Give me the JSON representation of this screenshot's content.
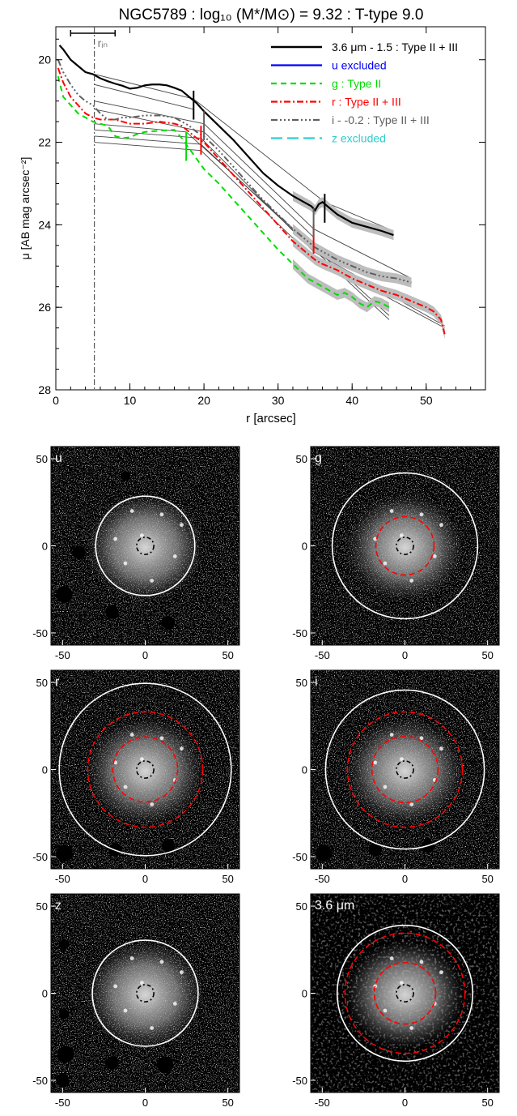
{
  "chart_data": [
    {
      "type": "line",
      "title": "NGC5789 : log₁₀ (M*/M⊙) = 9.32 : T-type 9.0",
      "xlabel": "r [arcsec]",
      "ylabel": "μ [AB mag arcsec⁻²]",
      "xlim": [
        0,
        58
      ],
      "ylim": [
        28,
        19.2
      ],
      "x_ticks": [
        0,
        10,
        20,
        30,
        40,
        50
      ],
      "y_ticks": [
        20,
        22,
        24,
        26,
        28
      ],
      "grid": false,
      "legend_position": "top-right",
      "r_in": 5.2,
      "r_in_label": "rᵢₙ",
      "resolution_bar": [
        2,
        8
      ],
      "series": [
        {
          "name": "3.6 μm - 1.5 : Type II + III",
          "color": "#000000",
          "dash": "",
          "width": 2.2,
          "x": [
            0.5,
            1,
            2,
            3,
            4,
            5,
            6,
            7,
            8,
            9,
            10,
            11,
            12,
            13,
            14,
            15,
            16,
            17,
            18,
            19,
            20,
            22,
            24,
            26,
            28,
            30,
            32,
            33,
            34,
            34.5,
            35,
            35.5,
            36,
            37,
            38,
            39,
            40,
            42,
            44,
            45.6
          ],
          "y": [
            19.65,
            19.75,
            20.0,
            20.15,
            20.3,
            20.35,
            20.45,
            20.52,
            20.58,
            20.63,
            20.7,
            20.68,
            20.62,
            20.6,
            20.6,
            20.62,
            20.68,
            20.75,
            20.9,
            21.05,
            21.25,
            21.6,
            21.95,
            22.35,
            22.75,
            23.05,
            23.3,
            23.4,
            23.5,
            23.55,
            23.65,
            23.5,
            23.45,
            23.6,
            23.75,
            23.85,
            23.95,
            24.05,
            24.15,
            24.25
          ]
        },
        {
          "name": "u excluded",
          "color": "#0000ff",
          "dash": "",
          "width": 2,
          "x": [],
          "y": []
        },
        {
          "name": "g : Type II",
          "color": "#00dd00",
          "dash": "7,5",
          "width": 2,
          "x": [
            0.3,
            1,
            2,
            3,
            4,
            5,
            6,
            7,
            8,
            9,
            10,
            11,
            12,
            14,
            16,
            17,
            18,
            19,
            20,
            22,
            24,
            26,
            28,
            30,
            32,
            34,
            35,
            36,
            37,
            38,
            39,
            40,
            41,
            42,
            43,
            44,
            45
          ],
          "y": [
            20.4,
            20.9,
            21.1,
            21.3,
            21.4,
            21.5,
            21.55,
            21.6,
            21.85,
            21.9,
            21.88,
            21.8,
            21.75,
            21.72,
            21.7,
            21.9,
            22.15,
            22.4,
            22.65,
            23.0,
            23.4,
            23.8,
            24.2,
            24.6,
            24.95,
            25.3,
            25.4,
            25.5,
            25.6,
            25.7,
            25.65,
            25.75,
            25.9,
            26.0,
            25.85,
            25.9,
            26.0
          ]
        },
        {
          "name": "r : Type II + III",
          "color": "#ff0000",
          "dash": "8,3,2,3",
          "width": 2,
          "x": [
            0.3,
            1,
            2,
            3,
            4,
            5,
            6,
            7,
            8,
            9,
            10,
            12,
            14,
            16,
            17,
            18,
            19,
            20,
            22,
            24,
            26,
            28,
            30,
            32,
            34,
            35,
            36,
            38,
            40,
            42,
            44,
            46,
            48,
            50,
            51,
            52,
            52.5
          ],
          "y": [
            20.2,
            20.55,
            20.9,
            21.1,
            21.3,
            21.4,
            21.45,
            21.45,
            21.45,
            21.5,
            21.55,
            21.55,
            21.5,
            21.55,
            21.6,
            21.75,
            21.9,
            22.0,
            22.4,
            22.8,
            23.2,
            23.6,
            24.0,
            24.4,
            24.7,
            24.85,
            24.95,
            25.1,
            25.3,
            25.45,
            25.6,
            25.7,
            25.85,
            26.0,
            26.1,
            26.3,
            26.65
          ]
        },
        {
          "name": "i - -0.2 : Type II + III",
          "color": "#606060",
          "dash": "8,3,2,3,2,3,2,3",
          "width": 2,
          "x": [
            0.3,
            1,
            2,
            3,
            4,
            5,
            6,
            7,
            8,
            9,
            10,
            12,
            14,
            16,
            17,
            18,
            19,
            20,
            22,
            24,
            26,
            28,
            30,
            32,
            34,
            35,
            36,
            38,
            40,
            42,
            44,
            46,
            48
          ],
          "y": [
            20.0,
            20.3,
            20.6,
            20.85,
            21.0,
            21.1,
            21.3,
            21.45,
            21.45,
            21.4,
            21.4,
            21.35,
            21.35,
            21.4,
            21.5,
            21.6,
            21.75,
            21.85,
            22.2,
            22.6,
            23.0,
            23.4,
            23.75,
            24.1,
            24.4,
            24.55,
            24.65,
            24.85,
            25.0,
            25.15,
            25.25,
            25.3,
            25.4
          ]
        },
        {
          "name": "z excluded",
          "color": "#33cccc",
          "dash": "14,6",
          "width": 2,
          "x": [],
          "y": []
        }
      ],
      "break_markers": [
        {
          "r": 18.6,
          "mu": 21.1,
          "color": "#000000"
        },
        {
          "r": 36.3,
          "mu": 23.6,
          "color": "#000000"
        },
        {
          "r": 17.6,
          "mu": 22.1,
          "color": "#00dd00"
        },
        {
          "r": 19.6,
          "mu": 21.95,
          "color": "#ff0000"
        },
        {
          "r": 34.8,
          "mu": 24.35,
          "color": "#ff0000"
        },
        {
          "r": 20.0,
          "mu": 21.6,
          "color": "#606060"
        },
        {
          "r": 34.8,
          "mu": 23.95,
          "color": "#606060"
        }
      ],
      "fit_lines": [
        {
          "x": [
            5.2,
            18.6
          ],
          "y": [
            20.35,
            20.95
          ]
        },
        {
          "x": [
            18.6,
            36.3
          ],
          "y": [
            20.95,
            23.45
          ]
        },
        {
          "x": [
            36.3,
            45.6
          ],
          "y": [
            23.45,
            24.15
          ]
        },
        {
          "x": [
            5.2,
            18.6
          ],
          "y": [
            20.6,
            21.2
          ]
        },
        {
          "x": [
            5.2,
            17.6
          ],
          "y": [
            21.55,
            21.75
          ]
        },
        {
          "x": [
            17.6,
            45
          ],
          "y": [
            21.75,
            26.2
          ]
        },
        {
          "x": [
            5.2,
            19.6
          ],
          "y": [
            21.7,
            21.9
          ]
        },
        {
          "x": [
            19.6,
            34.8
          ],
          "y": [
            21.9,
            24.65
          ]
        },
        {
          "x": [
            34.8,
            52.5
          ],
          "y": [
            24.65,
            26.45
          ]
        },
        {
          "x": [
            5.2,
            19.6
          ],
          "y": [
            21.85,
            22.05
          ]
        },
        {
          "x": [
            19.6,
            45
          ],
          "y": [
            22.05,
            26.3
          ]
        },
        {
          "x": [
            5.2,
            20.0
          ],
          "y": [
            21.0,
            21.55
          ]
        },
        {
          "x": [
            20.0,
            34.8
          ],
          "y": [
            21.55,
            24.1
          ]
        },
        {
          "x": [
            34.8,
            48
          ],
          "y": [
            24.1,
            25.3
          ]
        },
        {
          "x": [
            5.2,
            20.0
          ],
          "y": [
            21.2,
            21.75
          ]
        },
        {
          "x": [
            20.0,
            34.8
          ],
          "y": [
            21.75,
            24.3
          ]
        },
        {
          "x": [
            5.2,
            19.6
          ],
          "y": [
            22.0,
            22.2
          ]
        },
        {
          "x": [
            19.6,
            34.8
          ],
          "y": [
            22.2,
            24.8
          ]
        },
        {
          "x": [
            34.8,
            52.5
          ],
          "y": [
            24.8,
            26.5
          ]
        }
      ]
    },
    {
      "type": "heatmap",
      "panels": [
        {
          "label": "u",
          "outer_radius": 30,
          "break_radii": [],
          "inner_radius": 5.2,
          "masks": [
            [
              -49,
              -28,
              5
            ],
            [
              -20,
              -38,
              4
            ],
            [
              -40,
              -4,
              4
            ],
            [
              14,
              -44,
              4
            ],
            [
              -12,
              40,
              3
            ]
          ]
        },
        {
          "label": "g",
          "outer_radius": 44,
          "break_radii": [
            17.6
          ],
          "inner_radius": 5.2,
          "masks": []
        },
        {
          "label": "r",
          "outer_radius": 52,
          "break_radii": [
            19.6,
            34.8
          ],
          "inner_radius": 5.2,
          "masks": [
            [
              -49,
              -48,
              5
            ],
            [
              -18,
              -46,
              4
            ],
            [
              14,
              -44,
              4
            ]
          ]
        },
        {
          "label": "i",
          "outer_radius": 48,
          "break_radii": [
            20.0,
            34.8
          ],
          "inner_radius": 5.2,
          "masks": [
            [
              -49,
              -48,
              5
            ],
            [
              -18,
              -46,
              4
            ],
            [
              14,
              -44,
              4
            ]
          ]
        },
        {
          "label": "z",
          "outer_radius": 32,
          "break_radii": [],
          "inner_radius": 5.2,
          "masks": [
            [
              -48,
              -35,
              5
            ],
            [
              -20,
              -40,
              4
            ],
            [
              12,
              -41,
              5
            ],
            [
              -48,
              -36,
              3
            ],
            [
              -49,
              28,
              3
            ],
            [
              -49,
              -12,
              3
            ],
            [
              -50,
              -50,
              4
            ]
          ]
        },
        {
          "label": "3.6 μm",
          "outer_radius": 41,
          "break_radii": [
            18.6,
            36.3
          ],
          "inner_radius": 5.2,
          "masks": []
        }
      ],
      "x_ticks": [
        -50,
        0,
        50
      ],
      "y_ticks": [
        50,
        0,
        -50
      ],
      "xlim": [
        -57,
        57
      ],
      "ylim": [
        -57,
        57
      ],
      "colors": {
        "outer_ellipse": "#ffffff",
        "break_ellipse": "#ff0000",
        "inner_ellipse": "#000000"
      }
    }
  ]
}
